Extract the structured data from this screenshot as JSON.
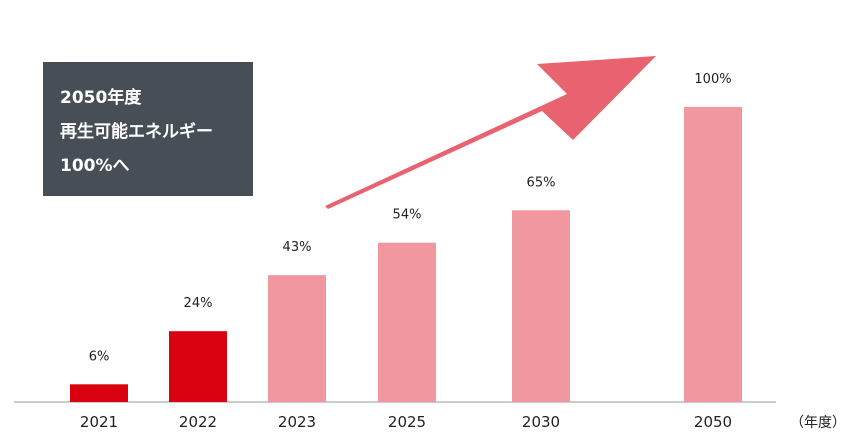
{
  "callout": {
    "lines": [
      "2050年度",
      "再生可能エネルギー",
      "100%へ"
    ]
  },
  "x_unit": "（年度）",
  "colors": {
    "actual": "#d9000f",
    "projected": "#f0979f",
    "arrow": "#e8636f",
    "callout_bg": "#474e56",
    "axis": "#999999"
  },
  "chart_data": {
    "type": "bar",
    "categories": [
      "2021",
      "2022",
      "2023",
      "2025",
      "2030",
      "2050"
    ],
    "values": [
      6,
      24,
      43,
      54,
      65,
      100
    ],
    "labels": [
      "6%",
      "24%",
      "43%",
      "54%",
      "65%",
      "100%"
    ],
    "status": [
      "actual",
      "actual",
      "projected",
      "projected",
      "projected",
      "projected"
    ],
    "ylim": [
      0,
      100
    ],
    "title": "",
    "xlabel": "（年度）",
    "ylabel": "",
    "grid": false,
    "legend": "none"
  }
}
